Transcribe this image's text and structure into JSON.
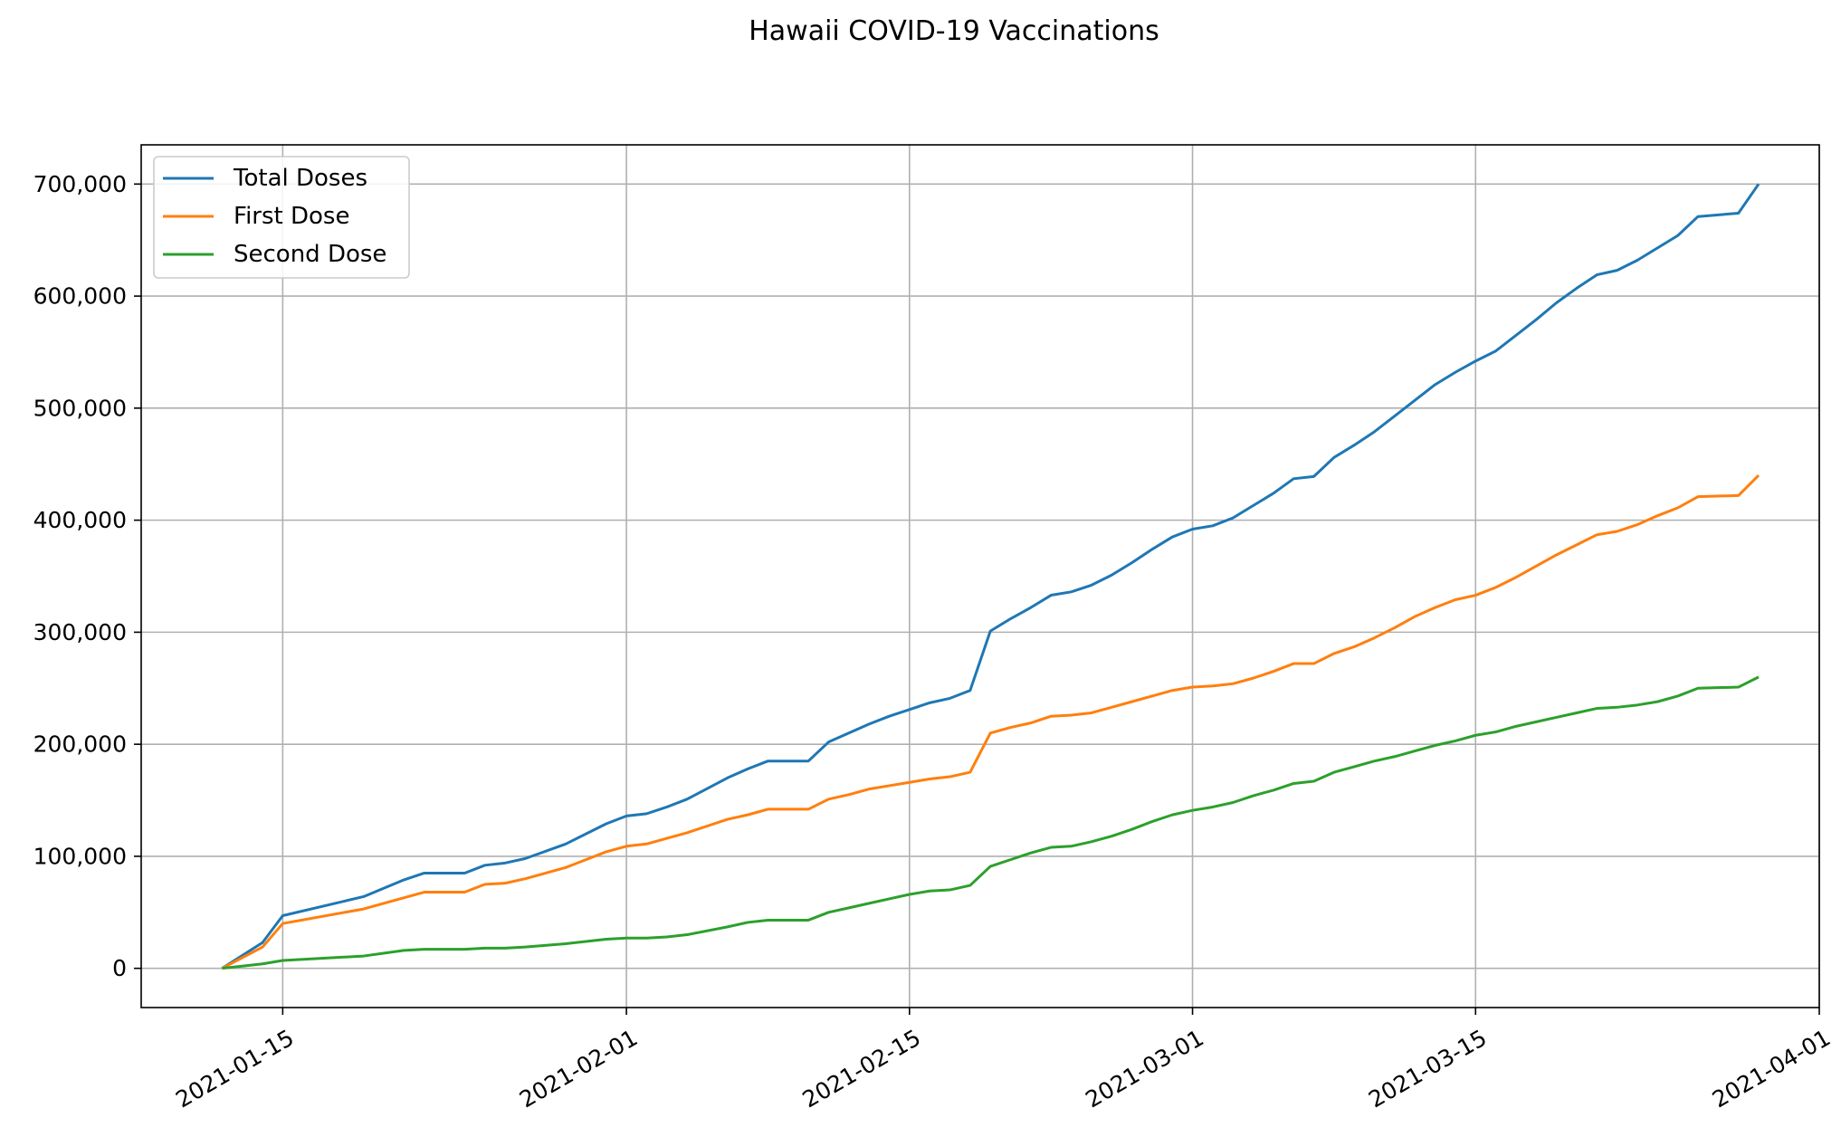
{
  "chart_data": {
    "type": "line",
    "title": "Hawaii COVID-19 Vaccinations",
    "xlabel": "",
    "ylabel": "",
    "grid": true,
    "legend_position": "upper-left",
    "xlim": [
      "2021-01-08",
      "2021-04-01"
    ],
    "ylim": [
      -35000,
      735000
    ],
    "x_ticks": [
      "2021-01-15",
      "2021-02-01",
      "2021-02-15",
      "2021-03-01",
      "2021-03-15",
      "2021-04-01"
    ],
    "y_ticks": [
      0,
      100000,
      200000,
      300000,
      400000,
      500000,
      600000,
      700000
    ],
    "y_tick_labels": [
      "0",
      "100,000",
      "200,000",
      "300,000",
      "400,000",
      "500,000",
      "600,000",
      "700,000"
    ],
    "series": [
      {
        "name": "Total Doses",
        "color": "#1f77b4",
        "points": [
          [
            "2021-01-12",
            0
          ],
          [
            "2021-01-14",
            23000
          ],
          [
            "2021-01-15",
            47000
          ],
          [
            "2021-01-19",
            64000
          ],
          [
            "2021-01-21",
            79000
          ],
          [
            "2021-01-22",
            85000
          ],
          [
            "2021-01-24",
            85000
          ],
          [
            "2021-01-25",
            92000
          ],
          [
            "2021-01-26",
            94000
          ],
          [
            "2021-01-27",
            98000
          ],
          [
            "2021-01-29",
            111000
          ],
          [
            "2021-01-31",
            129000
          ],
          [
            "2021-02-01",
            136000
          ],
          [
            "2021-02-02",
            138000
          ],
          [
            "2021-02-03",
            144000
          ],
          [
            "2021-02-04",
            151000
          ],
          [
            "2021-02-06",
            170000
          ],
          [
            "2021-02-07",
            178000
          ],
          [
            "2021-02-08",
            185000
          ],
          [
            "2021-02-10",
            185000
          ],
          [
            "2021-02-11",
            202000
          ],
          [
            "2021-02-12",
            210000
          ],
          [
            "2021-02-13",
            218000
          ],
          [
            "2021-02-14",
            225000
          ],
          [
            "2021-02-15",
            231000
          ],
          [
            "2021-02-16",
            237000
          ],
          [
            "2021-02-17",
            241000
          ],
          [
            "2021-02-18",
            248000
          ],
          [
            "2021-02-19",
            301000
          ],
          [
            "2021-02-20",
            312000
          ],
          [
            "2021-02-21",
            322000
          ],
          [
            "2021-02-22",
            333000
          ],
          [
            "2021-02-23",
            336000
          ],
          [
            "2021-02-24",
            342000
          ],
          [
            "2021-02-25",
            351000
          ],
          [
            "2021-02-26",
            362000
          ],
          [
            "2021-02-27",
            374000
          ],
          [
            "2021-02-28",
            385000
          ],
          [
            "2021-03-01",
            392000
          ],
          [
            "2021-03-02",
            395000
          ],
          [
            "2021-03-03",
            402000
          ],
          [
            "2021-03-04",
            413000
          ],
          [
            "2021-03-05",
            424000
          ],
          [
            "2021-03-06",
            437000
          ],
          [
            "2021-03-07",
            439000
          ],
          [
            "2021-03-08",
            456000
          ],
          [
            "2021-03-09",
            467000
          ],
          [
            "2021-03-10",
            479000
          ],
          [
            "2021-03-11",
            493000
          ],
          [
            "2021-03-12",
            507000
          ],
          [
            "2021-03-13",
            521000
          ],
          [
            "2021-03-14",
            532000
          ],
          [
            "2021-03-15",
            542000
          ],
          [
            "2021-03-16",
            551000
          ],
          [
            "2021-03-17",
            565000
          ],
          [
            "2021-03-18",
            579000
          ],
          [
            "2021-03-19",
            594000
          ],
          [
            "2021-03-20",
            607000
          ],
          [
            "2021-03-21",
            619000
          ],
          [
            "2021-03-22",
            623000
          ],
          [
            "2021-03-23",
            632000
          ],
          [
            "2021-03-24",
            643000
          ],
          [
            "2021-03-25",
            654000
          ],
          [
            "2021-03-26",
            671000
          ],
          [
            "2021-03-28",
            674000
          ],
          [
            "2021-03-29",
            700000
          ]
        ]
      },
      {
        "name": "First Dose",
        "color": "#ff7f0e",
        "points": [
          [
            "2021-01-12",
            0
          ],
          [
            "2021-01-14",
            19000
          ],
          [
            "2021-01-15",
            40000
          ],
          [
            "2021-01-19",
            53000
          ],
          [
            "2021-01-21",
            63000
          ],
          [
            "2021-01-22",
            68000
          ],
          [
            "2021-01-24",
            68000
          ],
          [
            "2021-01-25",
            75000
          ],
          [
            "2021-01-26",
            76000
          ],
          [
            "2021-01-27",
            80000
          ],
          [
            "2021-01-29",
            90000
          ],
          [
            "2021-01-31",
            104000
          ],
          [
            "2021-02-01",
            109000
          ],
          [
            "2021-02-02",
            111000
          ],
          [
            "2021-02-03",
            116000
          ],
          [
            "2021-02-04",
            121000
          ],
          [
            "2021-02-06",
            133000
          ],
          [
            "2021-02-07",
            137000
          ],
          [
            "2021-02-08",
            142000
          ],
          [
            "2021-02-10",
            142000
          ],
          [
            "2021-02-11",
            151000
          ],
          [
            "2021-02-12",
            155000
          ],
          [
            "2021-02-13",
            160000
          ],
          [
            "2021-02-14",
            163000
          ],
          [
            "2021-02-15",
            166000
          ],
          [
            "2021-02-16",
            169000
          ],
          [
            "2021-02-17",
            171000
          ],
          [
            "2021-02-18",
            175000
          ],
          [
            "2021-02-19",
            210000
          ],
          [
            "2021-02-20",
            215000
          ],
          [
            "2021-02-21",
            219000
          ],
          [
            "2021-02-22",
            225000
          ],
          [
            "2021-02-23",
            226000
          ],
          [
            "2021-02-24",
            228000
          ],
          [
            "2021-02-25",
            233000
          ],
          [
            "2021-02-26",
            238000
          ],
          [
            "2021-02-27",
            243000
          ],
          [
            "2021-02-28",
            248000
          ],
          [
            "2021-03-01",
            251000
          ],
          [
            "2021-03-02",
            252000
          ],
          [
            "2021-03-03",
            254000
          ],
          [
            "2021-03-04",
            259000
          ],
          [
            "2021-03-05",
            265000
          ],
          [
            "2021-03-06",
            272000
          ],
          [
            "2021-03-07",
            272000
          ],
          [
            "2021-03-08",
            281000
          ],
          [
            "2021-03-09",
            287000
          ],
          [
            "2021-03-10",
            295000
          ],
          [
            "2021-03-11",
            304000
          ],
          [
            "2021-03-12",
            314000
          ],
          [
            "2021-03-13",
            322000
          ],
          [
            "2021-03-14",
            329000
          ],
          [
            "2021-03-15",
            333000
          ],
          [
            "2021-03-16",
            340000
          ],
          [
            "2021-03-17",
            349000
          ],
          [
            "2021-03-18",
            359000
          ],
          [
            "2021-03-19",
            369000
          ],
          [
            "2021-03-20",
            378000
          ],
          [
            "2021-03-21",
            387000
          ],
          [
            "2021-03-22",
            390000
          ],
          [
            "2021-03-23",
            396000
          ],
          [
            "2021-03-24",
            404000
          ],
          [
            "2021-03-25",
            411000
          ],
          [
            "2021-03-26",
            421000
          ],
          [
            "2021-03-28",
            422000
          ],
          [
            "2021-03-29",
            440000
          ]
        ]
      },
      {
        "name": "Second Dose",
        "color": "#2ca02c",
        "points": [
          [
            "2021-01-12",
            0
          ],
          [
            "2021-01-14",
            4000
          ],
          [
            "2021-01-15",
            7000
          ],
          [
            "2021-01-19",
            11000
          ],
          [
            "2021-01-21",
            16000
          ],
          [
            "2021-01-22",
            17000
          ],
          [
            "2021-01-24",
            17000
          ],
          [
            "2021-01-25",
            18000
          ],
          [
            "2021-01-26",
            18000
          ],
          [
            "2021-01-27",
            19000
          ],
          [
            "2021-01-29",
            22000
          ],
          [
            "2021-01-31",
            26000
          ],
          [
            "2021-02-01",
            27000
          ],
          [
            "2021-02-02",
            27000
          ],
          [
            "2021-02-03",
            28000
          ],
          [
            "2021-02-04",
            30000
          ],
          [
            "2021-02-06",
            37000
          ],
          [
            "2021-02-07",
            41000
          ],
          [
            "2021-02-08",
            43000
          ],
          [
            "2021-02-10",
            43000
          ],
          [
            "2021-02-11",
            50000
          ],
          [
            "2021-02-12",
            54000
          ],
          [
            "2021-02-13",
            58000
          ],
          [
            "2021-02-14",
            62000
          ],
          [
            "2021-02-15",
            66000
          ],
          [
            "2021-02-16",
            69000
          ],
          [
            "2021-02-17",
            70000
          ],
          [
            "2021-02-18",
            74000
          ],
          [
            "2021-02-19",
            91000
          ],
          [
            "2021-02-20",
            97000
          ],
          [
            "2021-02-21",
            103000
          ],
          [
            "2021-02-22",
            108000
          ],
          [
            "2021-02-23",
            109000
          ],
          [
            "2021-02-24",
            113000
          ],
          [
            "2021-02-25",
            118000
          ],
          [
            "2021-02-26",
            124000
          ],
          [
            "2021-02-27",
            131000
          ],
          [
            "2021-02-28",
            137000
          ],
          [
            "2021-03-01",
            141000
          ],
          [
            "2021-03-02",
            144000
          ],
          [
            "2021-03-03",
            148000
          ],
          [
            "2021-03-04",
            154000
          ],
          [
            "2021-03-05",
            159000
          ],
          [
            "2021-03-06",
            165000
          ],
          [
            "2021-03-07",
            167000
          ],
          [
            "2021-03-08",
            175000
          ],
          [
            "2021-03-09",
            180000
          ],
          [
            "2021-03-10",
            185000
          ],
          [
            "2021-03-11",
            189000
          ],
          [
            "2021-03-12",
            194000
          ],
          [
            "2021-03-13",
            199000
          ],
          [
            "2021-03-14",
            203000
          ],
          [
            "2021-03-15",
            208000
          ],
          [
            "2021-03-16",
            211000
          ],
          [
            "2021-03-17",
            216000
          ],
          [
            "2021-03-18",
            220000
          ],
          [
            "2021-03-19",
            224000
          ],
          [
            "2021-03-20",
            228000
          ],
          [
            "2021-03-21",
            232000
          ],
          [
            "2021-03-22",
            233000
          ],
          [
            "2021-03-23",
            235000
          ],
          [
            "2021-03-24",
            238000
          ],
          [
            "2021-03-25",
            243000
          ],
          [
            "2021-03-26",
            250000
          ],
          [
            "2021-03-28",
            251000
          ],
          [
            "2021-03-29",
            260000
          ]
        ]
      }
    ]
  }
}
